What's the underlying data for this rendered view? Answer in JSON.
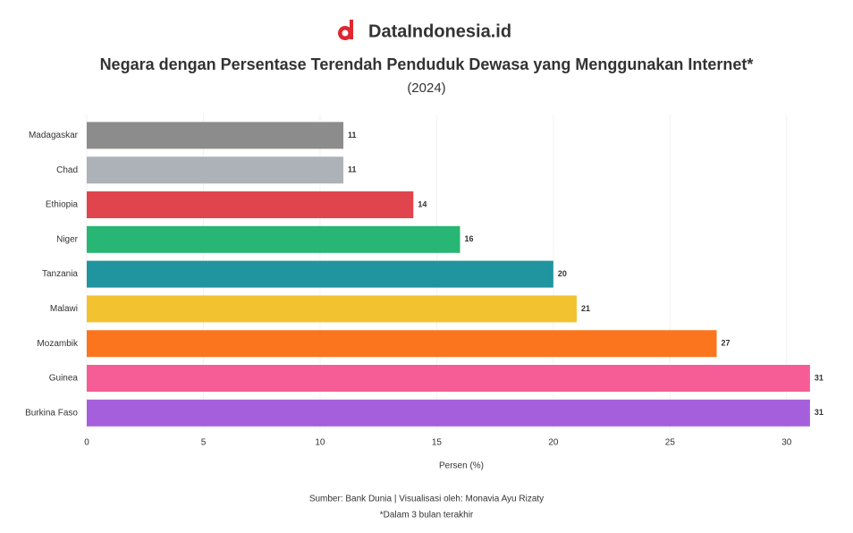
{
  "brand": "DataIndonesia.id",
  "chart_data": {
    "type": "hbar",
    "title": "Negara dengan Persentase Terendah Penduduk Dewasa yang Menggunakan Internet*",
    "subtitle": "(2024)",
    "categories": [
      "Madagaskar",
      "Chad",
      "Ethiopia",
      "Niger",
      "Tanzania",
      "Malawi",
      "Mozambik",
      "Guinea",
      "Burkina Faso"
    ],
    "values": [
      11,
      11,
      14,
      16,
      20,
      21,
      27,
      31,
      31
    ],
    "colors": [
      "#8c8c8c",
      "#adb1b8",
      "#e0444d",
      "#27b673",
      "#21959f",
      "#f2c230",
      "#fb751e",
      "#f65d96",
      "#a55fdc"
    ],
    "xlim": [
      0,
      32
    ],
    "xticks": [
      0,
      5,
      10,
      15,
      20,
      25,
      30
    ],
    "xlabel": "Persen (%)",
    "source": "Sumber: Bank Dunia | Visualisasi oleh: Monavia Ayu Rizaty",
    "note": "*Dalam 3 bulan terakhir"
  }
}
